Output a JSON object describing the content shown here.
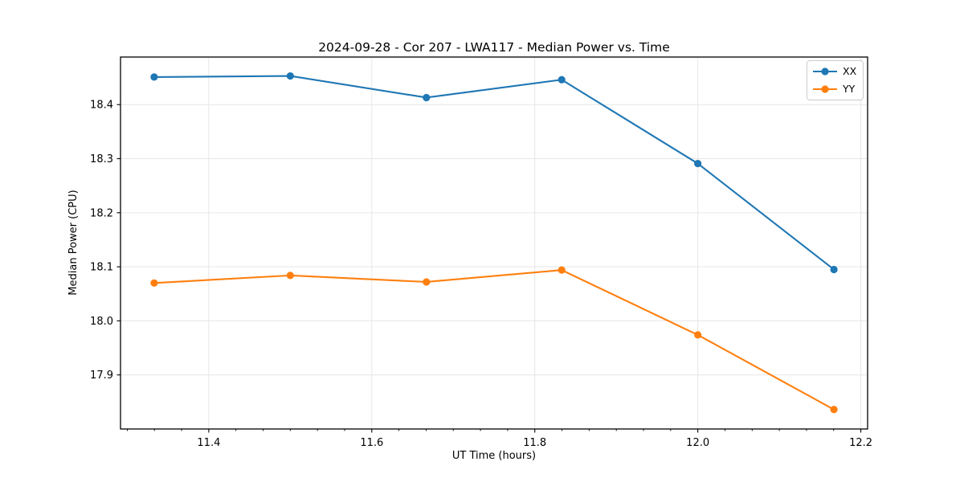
{
  "style": {
    "background": "#ffffff",
    "grid_color": "#e6e6e6",
    "spine_color": "#000000",
    "tick_color": "#000000",
    "text_color": "#000000",
    "legend_border": "#cccccc"
  },
  "chart_data": {
    "type": "line",
    "title": "2024-09-28 - Cor 207 - LWA117 - Median Power vs. Time",
    "xlabel": "UT Time (hours)",
    "ylabel": "Median Power (CPU)",
    "x": [
      11.333,
      11.5,
      11.667,
      11.833,
      12.0,
      12.167
    ],
    "series": [
      {
        "name": "XX",
        "color": "#1f77b4",
        "values": [
          18.451,
          18.453,
          18.413,
          18.446,
          18.291,
          18.095
        ]
      },
      {
        "name": "YY",
        "color": "#ff7f0e",
        "values": [
          18.07,
          18.084,
          18.072,
          18.094,
          17.974,
          17.836
        ]
      }
    ],
    "xlim": [
      11.2917,
      12.2083
    ],
    "ylim": [
      17.8,
      18.488
    ],
    "xticks": [
      11.4,
      11.6,
      11.8,
      12.0,
      12.2
    ],
    "xtick_labels": [
      "11.4",
      "11.6",
      "11.8",
      "12.0",
      "12.2"
    ],
    "x_minor_step": 0.0333333,
    "yticks": [
      17.9,
      18.0,
      18.1,
      18.2,
      18.3,
      18.4
    ],
    "ytick_labels": [
      "17.9",
      "18.0",
      "18.1",
      "18.2",
      "18.3",
      "18.4"
    ],
    "grid": true,
    "legend_position": "upper right",
    "marker": "circle",
    "line_width": 2.1,
    "marker_radius": 4.6
  }
}
